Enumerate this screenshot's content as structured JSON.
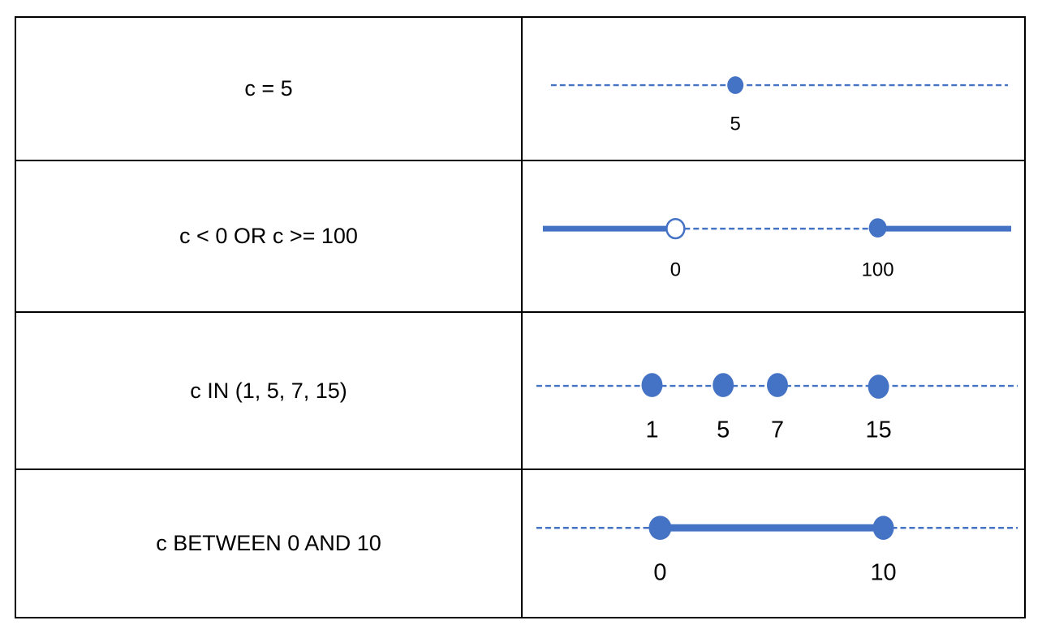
{
  "rows": [
    {
      "condition": "c = 5",
      "points": [
        {
          "label": "5"
        }
      ]
    },
    {
      "condition": "c < 0 OR c >= 100",
      "points": [
        {
          "label": "0"
        },
        {
          "label": "100"
        }
      ]
    },
    {
      "condition": "c IN (1, 5, 7, 15)",
      "points": [
        {
          "label": "1"
        },
        {
          "label": "5"
        },
        {
          "label": "7"
        },
        {
          "label": "15"
        }
      ]
    },
    {
      "condition": "c BETWEEN 0 AND 10",
      "points": [
        {
          "label": "0"
        },
        {
          "label": "10"
        }
      ]
    }
  ],
  "colors": {
    "line": "#4472c4",
    "text": "#000000",
    "border": "#000000"
  }
}
